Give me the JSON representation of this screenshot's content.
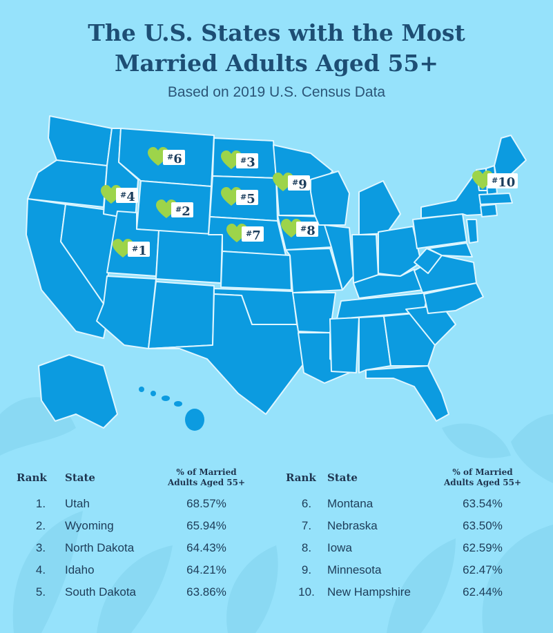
{
  "title_line1": "The U.S. States with the Most",
  "title_line2": "Married Adults Aged 55+",
  "subtitle": "Based on 2019 U.S. Census Data",
  "colors": {
    "background": "#96e2fb",
    "map_fill": "#0c9be0",
    "state_border": "#dff6ff",
    "heart": "#9dd44a",
    "title": "#1d4e74"
  },
  "map_markers": [
    {
      "hash": "#",
      "number": "1",
      "state": "Utah"
    },
    {
      "hash": "#",
      "number": "2",
      "state": "Wyoming"
    },
    {
      "hash": "#",
      "number": "3",
      "state": "North Dakota"
    },
    {
      "hash": "#",
      "number": "4",
      "state": "Idaho"
    },
    {
      "hash": "#",
      "number": "5",
      "state": "South Dakota"
    },
    {
      "hash": "#",
      "number": "6",
      "state": "Montana"
    },
    {
      "hash": "#",
      "number": "7",
      "state": "Nebraska"
    },
    {
      "hash": "#",
      "number": "8",
      "state": "Iowa"
    },
    {
      "hash": "#",
      "number": "9",
      "state": "Minnesota"
    },
    {
      "hash": "#",
      "number": "10",
      "state": "New Hampshire"
    }
  ],
  "table": {
    "header_rank": "Rank",
    "header_state": "State",
    "header_pct_line1": "% of Married",
    "header_pct_line2": "Adults Aged 55+",
    "left_rows": [
      {
        "rank": "1.",
        "state": "Utah",
        "pct": "68.57%"
      },
      {
        "rank": "2.",
        "state": "Wyoming",
        "pct": "65.94%"
      },
      {
        "rank": "3.",
        "state": "North Dakota",
        "pct": "64.43%"
      },
      {
        "rank": "4.",
        "state": "Idaho",
        "pct": "64.21%"
      },
      {
        "rank": "5.",
        "state": "South Dakota",
        "pct": "63.86%"
      }
    ],
    "right_rows": [
      {
        "rank": "6.",
        "state": "Montana",
        "pct": "63.54%"
      },
      {
        "rank": "7.",
        "state": "Nebraska",
        "pct": "63.50%"
      },
      {
        "rank": "8.",
        "state": "Iowa",
        "pct": "62.59%"
      },
      {
        "rank": "9.",
        "state": "Minnesota",
        "pct": "62.47%"
      },
      {
        "rank": "10.",
        "state": "New Hampshire",
        "pct": "62.44%"
      }
    ]
  }
}
